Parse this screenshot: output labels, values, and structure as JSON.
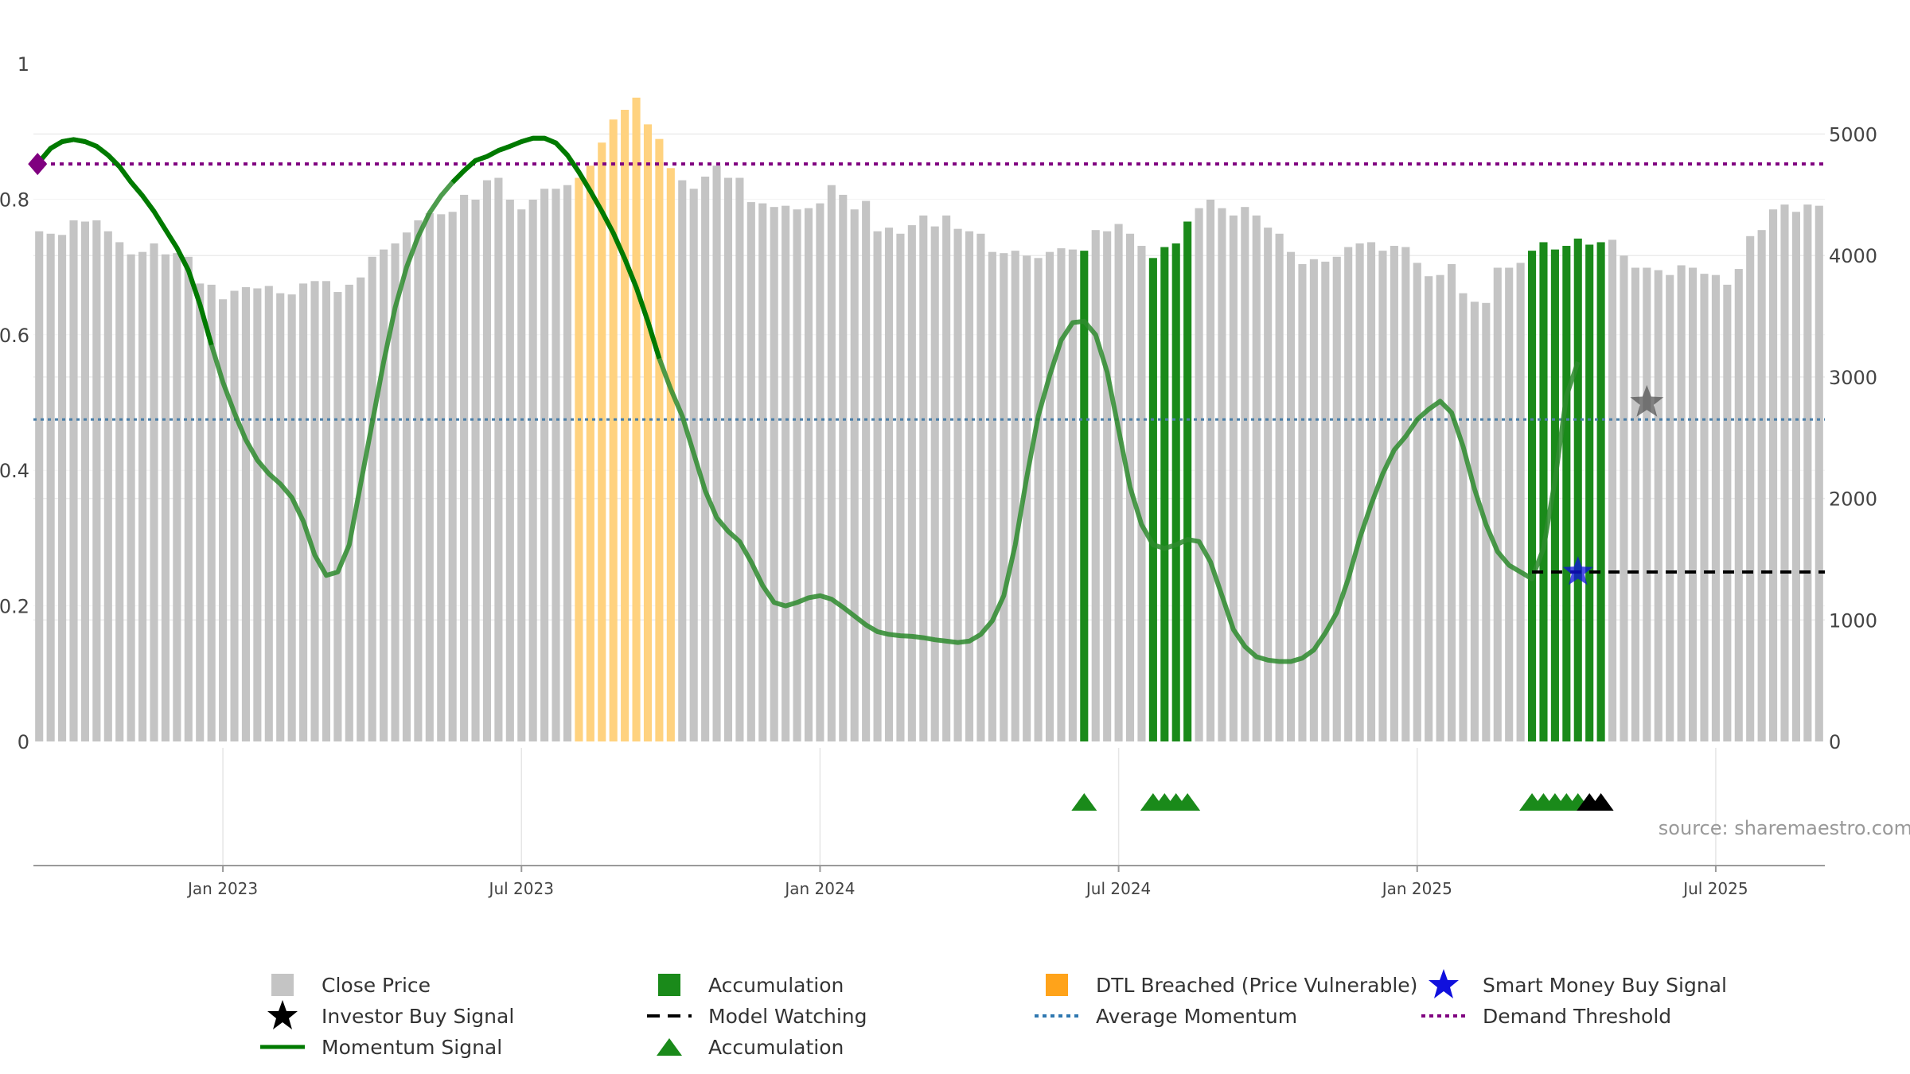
{
  "chart_data": {
    "type": "bar",
    "title": "",
    "xlabel": "",
    "ylabel": "",
    "x_ticks": [
      "Jan 2023",
      "Jul 2023",
      "Jan 2024",
      "Jul 2024",
      "Jan 2025",
      "Jul 2025"
    ],
    "x_tick_index": [
      16,
      42,
      68,
      94,
      120,
      146
    ],
    "left_axis": {
      "ticks": [
        "0",
        "0.2",
        "0.4",
        "0.6",
        "0.8",
        "1"
      ],
      "range": [
        0,
        1
      ]
    },
    "right_axis": {
      "ticks": [
        "0",
        "1000",
        "2000",
        "3000",
        "4000",
        "5000"
      ],
      "range": [
        0,
        5580
      ]
    },
    "close_price": [
      4200,
      4180,
      4170,
      4290,
      4280,
      4290,
      4200,
      4110,
      4010,
      4030,
      4100,
      4010,
      4020,
      3990,
      3770,
      3760,
      3640,
      3710,
      3740,
      3730,
      3750,
      3690,
      3680,
      3770,
      3790,
      3790,
      3700,
      3760,
      3820,
      3990,
      4050,
      4100,
      4190,
      4290,
      4350,
      4340,
      4360,
      4500,
      4460,
      4620,
      4640,
      4460,
      4380,
      4460,
      4550,
      4550,
      4580,
      4640,
      4740,
      4930,
      5120,
      5200,
      5300,
      5080,
      4960,
      4720,
      4620,
      4550,
      4650,
      4740,
      4640,
      4640,
      4440,
      4430,
      4400,
      4410,
      4380,
      4390,
      4430,
      4580,
      4500,
      4380,
      4450,
      4200,
      4230,
      4180,
      4250,
      4330,
      4240,
      4330,
      4220,
      4200,
      4180,
      4030,
      4020,
      4040,
      4000,
      3980,
      4030,
      4060,
      4050,
      4040,
      4210,
      4200,
      4260,
      4180,
      4080,
      3980,
      4070,
      4100,
      4280,
      4390,
      4460,
      4390,
      4330,
      4400,
      4330,
      4230,
      4180,
      4030,
      3930,
      3970,
      3950,
      3990,
      4070,
      4100,
      4110,
      4040,
      4080,
      4070,
      3940,
      3830,
      3840,
      3930,
      3690,
      3620,
      3610,
      3900,
      3900,
      3940,
      4040,
      4110,
      4050,
      4080,
      4140,
      4090,
      4110,
      4130,
      4000,
      3900,
      3900,
      3880,
      3840,
      3920,
      3900,
      3850,
      3840,
      3760,
      3890,
      4160,
      4210,
      4380,
      4420,
      4360,
      4420,
      4410
    ],
    "dtl_breached_index": [
      47,
      48,
      49,
      50,
      51,
      52,
      53,
      54,
      55
    ],
    "accumulation_bar_index": [
      91,
      97,
      98,
      99,
      100,
      130,
      131,
      132,
      133,
      134,
      135,
      136
    ],
    "momentum_signal": [
      0.855,
      0.875,
      0.885,
      0.888,
      0.885,
      0.878,
      0.865,
      0.848,
      0.825,
      0.805,
      0.782,
      0.755,
      0.728,
      0.695,
      0.645,
      0.585,
      0.53,
      0.485,
      0.445,
      0.415,
      0.395,
      0.38,
      0.36,
      0.325,
      0.275,
      0.245,
      0.25,
      0.29,
      0.38,
      0.47,
      0.56,
      0.64,
      0.7,
      0.745,
      0.78,
      0.805,
      0.825,
      0.842,
      0.857,
      0.863,
      0.872,
      0.878,
      0.885,
      0.89,
      0.89,
      0.883,
      0.865,
      0.84,
      0.812,
      0.782,
      0.75,
      0.712,
      0.67,
      0.62,
      0.565,
      0.52,
      0.48,
      0.425,
      0.37,
      0.33,
      0.31,
      0.295,
      0.265,
      0.23,
      0.205,
      0.2,
      0.205,
      0.212,
      0.215,
      0.21,
      0.198,
      0.185,
      0.172,
      0.162,
      0.158,
      0.156,
      0.155,
      0.153,
      0.15,
      0.148,
      0.146,
      0.148,
      0.158,
      0.178,
      0.215,
      0.29,
      0.39,
      0.48,
      0.54,
      0.592,
      0.618,
      0.62,
      0.6,
      0.545,
      0.46,
      0.375,
      0.32,
      0.29,
      0.285,
      0.29,
      0.298,
      0.295,
      0.265,
      0.215,
      0.165,
      0.14,
      0.125,
      0.12,
      0.118,
      0.118,
      0.123,
      0.135,
      0.16,
      0.19,
      0.24,
      0.3,
      0.35,
      0.395,
      0.43,
      0.45,
      0.475,
      0.49,
      0.502,
      0.485,
      0.435,
      0.372,
      0.32,
      0.28,
      0.26,
      0.25,
      0.24,
      0.285,
      0.385,
      0.51,
      0.56
    ],
    "momentum_strong_index_ranges": [
      [
        0,
        15
      ],
      [
        36,
        54
      ]
    ],
    "average_momentum": 0.475,
    "demand_threshold": 0.852,
    "model_watching": {
      "level": 0.25,
      "from_index": 130,
      "to_index": 156
    },
    "smart_money_buy_signal": {
      "index": 134,
      "value": 0.25
    },
    "investor_buy_signal": {
      "index": 140,
      "value": 0.5
    },
    "accumulation_markers_index": [
      91,
      97,
      98,
      99,
      100,
      130,
      131,
      132,
      133,
      134
    ],
    "black_markers_index": [
      135,
      136
    ],
    "colors": {
      "close_price": "#c4c4c4",
      "accumulation": "#1a8a1a",
      "dtl": "#ffd27f",
      "momentum": "#2e8b2e",
      "momentum_strong": "#007a00",
      "average": "#4a7fa8",
      "demand": "#800080",
      "model": "#000000",
      "smart_money": "#1010dd",
      "investor": "#555555"
    },
    "source_note": "source: sharemaestro.com",
    "legend": [
      "Close Price",
      "Accumulation",
      "DTL Breached (Price Vulnerable)",
      "Smart Money Buy Signal",
      "Investor Buy Signal",
      "Model Watching",
      "Average Momentum",
      "Demand Threshold",
      "Momentum Signal",
      "Accumulation"
    ]
  }
}
